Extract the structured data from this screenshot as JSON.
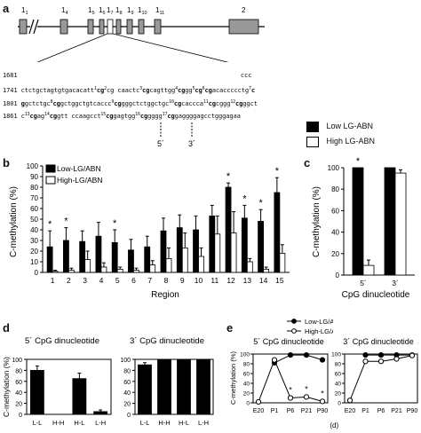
{
  "panel_a": {
    "letter": "a",
    "exons": [
      {
        "label": "1",
        "sub": "1"
      },
      {
        "label": "1",
        "sub": "4"
      },
      {
        "label": "1",
        "sub": "5"
      },
      {
        "label": "1",
        "sub": "6"
      },
      {
        "label": "1",
        "sub": "7"
      },
      {
        "label": "1",
        "sub": "8"
      },
      {
        "label": "1",
        "sub": "9"
      },
      {
        "label": "1",
        "sub": "10"
      },
      {
        "label": "1",
        "sub": "11"
      },
      {
        "label": "2",
        "sub": ""
      }
    ],
    "seq_lines": [
      {
        "num": "1681",
        "html": "                                                             ccc"
      },
      {
        "num": "1741",
        "html": "ctctgctagtgtgacacatt<sup>1</sup><b>cg</b><sup>2</sup>cg caactc<sup>3</sup><b>cg</b>cagttgg<sup>4</sup><b>cg</b>gg<sup>5</sup><b>cg</b><sup>6</sup><b>cg</b>acaccccctg<sup>7</sup><b>c</b>"
      },
      {
        "num": "1801",
        "html": "<b>g</b>gctctgc<sup>8</sup><b>cg</b>gctggctgtcaccc<sup>9</sup><b>cg</b>gggctctggctgc<sup>10</sup><b>cg</b>caccca<sup>11</sup><b>cg</b>cggg<sup>12</sup><b>cg</b>ggct"
      },
      {
        "num": "1861",
        "html": "c<sup>13</sup><b>cg</b>ag<sup>14</sup><b>cg</b>gtt ccaagcct<sup>15</sup><b>cg</b>gagtgg<sup>16</sup><b>cg</b>gggg<sup>17</sup><b>cg</b>gaggggagcctgggagaa"
      }
    ],
    "primer_5": "5´",
    "primer_3": "3´",
    "legend_low": "Low LG-ABN",
    "legend_high": "High LG-ABN"
  },
  "panel_b": {
    "letter": "b",
    "ylabel": "C-methylation (%)",
    "xlabel": "Region",
    "legend_low": "Low-LG/ABN",
    "legend_high": "High-LG/ABN"
  },
  "panel_c": {
    "letter": "c",
    "ylabel": "C-methylation (%)",
    "xlabel": "CpG dinucleotide",
    "star": "*"
  },
  "panel_d": {
    "letter": "d",
    "title_5": "5´ CpG dinucleotide",
    "title_3": "3´ CpG dinucleotide",
    "ylabel": "C-methylation (%)"
  },
  "panel_e": {
    "letter": "e",
    "title_5": "5´ CpG dinucleotide",
    "title_3": "3´ CpG dinucleotide",
    "ylabel": "C-methylation (%)",
    "xlabel": "Age (d)",
    "legend_low": "Low-LG/ABN",
    "legend_high": "High-LG/ABN"
  },
  "chart_data": [
    {
      "id": "b",
      "type": "bar",
      "categories": [
        "1",
        "2",
        "3",
        "4",
        "5",
        "6",
        "7",
        "8",
        "9",
        "10",
        "11",
        "12",
        "13",
        "14",
        "15"
      ],
      "ylim": [
        0,
        100
      ],
      "yticks": [
        0,
        10,
        20,
        30,
        40,
        50,
        60,
        70,
        80,
        90,
        100
      ],
      "xlabel": "Region",
      "ylabel": "C-methylation (%)",
      "series": [
        {
          "name": "Low-LG/ABN",
          "values": [
            24,
            30,
            29,
            34,
            28,
            21,
            24,
            39,
            42,
            40,
            53,
            80,
            51,
            48,
            75
          ],
          "errors": [
            15,
            12,
            10,
            13,
            12,
            10,
            10,
            12,
            12,
            13,
            10,
            4,
            12,
            11,
            14
          ]
        },
        {
          "name": "High-LG/ABN",
          "values": [
            1,
            2,
            12,
            5,
            3,
            2,
            7,
            13,
            23,
            15,
            36,
            37,
            10,
            3,
            18
          ],
          "errors": [
            1,
            2,
            8,
            4,
            2,
            2,
            4,
            10,
            14,
            8,
            17,
            20,
            3,
            2,
            8
          ]
        }
      ],
      "stars": [
        "1",
        "2",
        "5",
        "12",
        "13",
        "14",
        "15"
      ]
    },
    {
      "id": "c",
      "type": "bar",
      "categories": [
        "5´",
        "3´"
      ],
      "ylim": [
        0,
        100
      ],
      "yticks": [
        0,
        20,
        40,
        60,
        80,
        100
      ],
      "xlabel": "CpG dinucleotide",
      "ylabel": "C-methylation (%)",
      "series": [
        {
          "name": "Low LG-ABN",
          "values": [
            100,
            100
          ],
          "errors": [
            0,
            0
          ]
        },
        {
          "name": "High LG-ABN",
          "values": [
            9,
            95
          ],
          "errors": [
            5,
            3
          ]
        }
      ],
      "stars": [
        "5´"
      ]
    },
    {
      "id": "d5",
      "type": "bar",
      "categories": [
        "L-L",
        "H-H",
        "H-L",
        "L-H"
      ],
      "ylim": [
        0,
        100
      ],
      "yticks": [
        0,
        20,
        40,
        60,
        80,
        100
      ],
      "title": "5´ CpG dinucleotide",
      "ylabel": "C-methylation (%)",
      "series": [
        {
          "values": [
            80,
            0,
            65,
            5
          ],
          "errors": [
            8,
            0,
            10,
            3
          ]
        }
      ]
    },
    {
      "id": "d3",
      "type": "bar",
      "categories": [
        "L-L",
        "H-H",
        "H-L",
        "L-H"
      ],
      "ylim": [
        0,
        100
      ],
      "yticks": [
        0,
        20,
        40,
        60,
        80,
        100
      ],
      "title": "3´ CpG dinucleotide",
      "series": [
        {
          "values": [
            90,
            100,
            100,
            100
          ],
          "errors": [
            4,
            0,
            0,
            0
          ]
        }
      ]
    },
    {
      "id": "e5",
      "type": "line",
      "x": [
        "E20",
        "P1",
        "P6",
        "P21",
        "P90"
      ],
      "ylim": [
        0,
        100
      ],
      "yticks": [
        0,
        20,
        40,
        60,
        80,
        100
      ],
      "title": "5´ CpG dinucleotide",
      "ylabel": "C-methylation (%)",
      "xlabel": "Age (d)",
      "series": [
        {
          "name": "Low-LG/ABN",
          "values": [
            null,
            82,
            98,
            98,
            88
          ]
        },
        {
          "name": "High-LG/ABN",
          "values": [
            2,
            88,
            10,
            12,
            3
          ]
        }
      ],
      "stars": [
        "P6",
        "P21",
        "P90"
      ]
    },
    {
      "id": "e3",
      "type": "line",
      "x": [
        "E20",
        "P1",
        "P6",
        "P21",
        "P90"
      ],
      "ylim": [
        0,
        100
      ],
      "yticks": [
        0,
        20,
        40,
        60,
        80,
        100
      ],
      "title": "3´ CpG dinucleotide",
      "xlabel": "Age (d)",
      "series": [
        {
          "name": "Low-LG/ABN",
          "values": [
            null,
            98,
            98,
            98,
            98
          ]
        },
        {
          "name": "High-LG/ABN",
          "values": [
            5,
            85,
            85,
            90,
            97
          ]
        }
      ]
    }
  ]
}
